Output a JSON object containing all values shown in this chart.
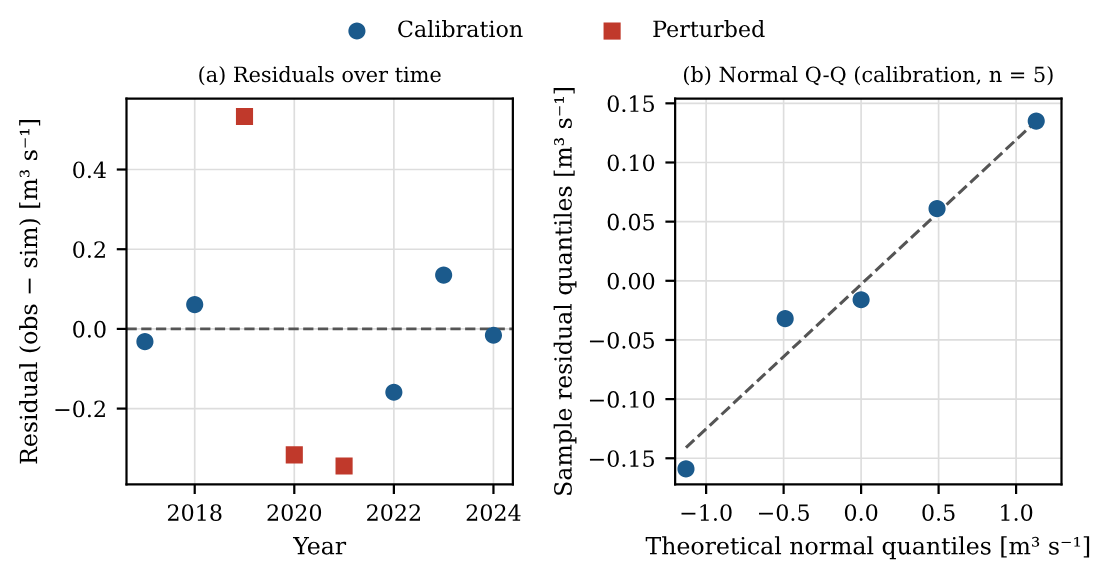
{
  "chart_data": [
    {
      "type": "scatter",
      "title": "(a) Residuals over time",
      "xlabel": "Year",
      "ylabel": "Residual (obs − sim) [m³ s⁻¹]",
      "xlim": [
        2016.63,
        2024.39
      ],
      "xticks": [
        2018,
        2020,
        2022,
        2024
      ],
      "ylim": [
        -0.39,
        0.578
      ],
      "yticks": [
        {
          "value": -0.2,
          "label": "−0.2"
        },
        {
          "value": 0.0,
          "label": "0.0"
        },
        {
          "value": 0.2,
          "label": "0.2"
        },
        {
          "value": 0.4,
          "label": "0.4"
        }
      ],
      "grid": true,
      "legend": "top",
      "series": [
        {
          "name": "Calibration",
          "color": "#1b5a8c",
          "marker": "circle",
          "x": [
            2017,
            2018,
            2022,
            2023,
            2024
          ],
          "values": [
            -0.032,
            0.061,
            -0.159,
            0.135,
            -0.016
          ]
        },
        {
          "name": "Perturbed",
          "color": "#c0392b",
          "marker": "square",
          "x": [
            2019,
            2020,
            2021
          ],
          "values": [
            0.533,
            -0.316,
            -0.344
          ]
        }
      ],
      "ref_lines": [
        {
          "axis": "y",
          "value": 0,
          "color": "#555555",
          "line_style": "dashed"
        }
      ]
    },
    {
      "type": "scatter",
      "title": "(b) Normal Q-Q (calibration, n = 5)",
      "xlabel": "Theoretical normal quantiles [m³ s⁻¹]",
      "ylabel": "Sample residual quantiles [m³ s⁻¹]",
      "xlim": [
        -1.2,
        1.293
      ],
      "xticks": [
        {
          "value": -1.0,
          "label": "−1.0"
        },
        {
          "value": -0.5,
          "label": "−0.5"
        },
        {
          "value": 0.0,
          "label": "0.0"
        },
        0.5,
        {
          "value": 1.0,
          "label": "1.0"
        }
      ],
      "ylim": [
        -0.172,
        0.154
      ],
      "yticks": [
        {
          "value": -0.15,
          "label": "−0.15"
        },
        {
          "value": -0.1,
          "label": "−0.10"
        },
        {
          "value": -0.05,
          "label": "−0.05"
        },
        {
          "value": 0.0,
          "label": "0.00"
        },
        {
          "value": 0.05,
          "label": "0.05"
        },
        {
          "value": 0.1,
          "label": "0.10"
        },
        {
          "value": 0.15,
          "label": "0.15"
        }
      ],
      "grid": true,
      "series": [
        {
          "type": "line",
          "color": "#555555",
          "line_style": "dashed",
          "marker": "none",
          "x": [
            -1.13,
            1.13
          ],
          "values": [
            -0.141,
            0.135
          ]
        },
        {
          "color": "#1b5a8c",
          "marker": "circle",
          "x": [
            -1.13,
            -0.49,
            0.0,
            0.49,
            1.13
          ],
          "values": [
            -0.159,
            -0.032,
            -0.016,
            0.061,
            0.135
          ]
        }
      ]
    }
  ]
}
